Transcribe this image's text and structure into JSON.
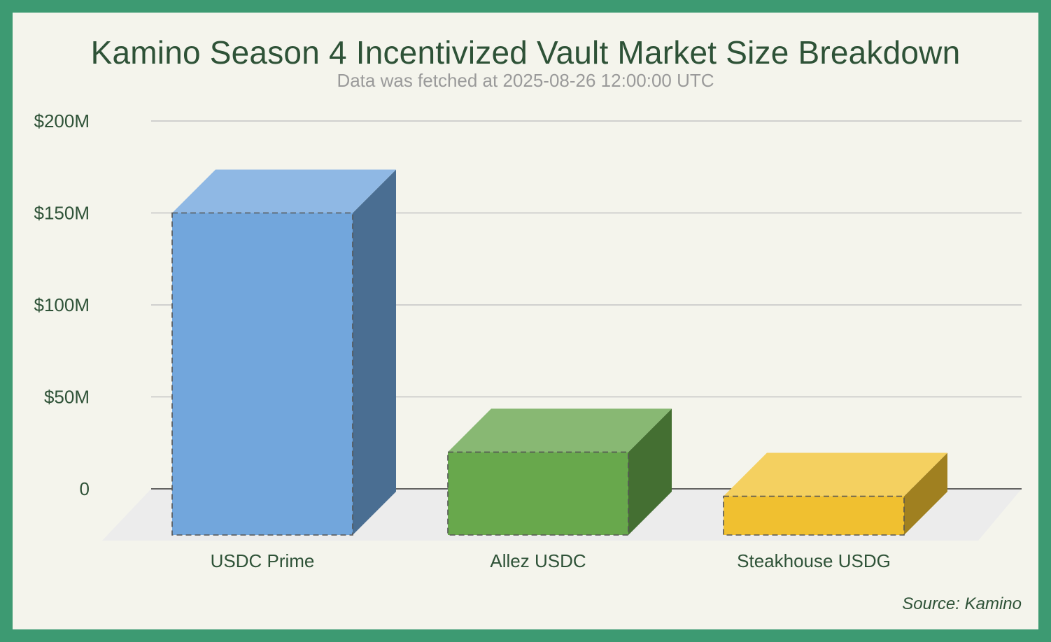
{
  "chart_data": {
    "type": "bar",
    "title": "Kamino Season 4 Incentivized Vault Market Size Breakdown",
    "subtitle": "Data was fetched at 2025-08-26 12:00:00 UTC",
    "source": "Source: Kamino",
    "categories": [
      "USDC Prime",
      "Allez USDC",
      "Steakhouse USDG"
    ],
    "values": [
      150000000,
      20000000,
      -4000000
    ],
    "ylim": [
      0,
      200000000
    ],
    "yticks": [
      0,
      50000000,
      100000000,
      150000000,
      200000000
    ],
    "ytick_labels": [
      "0",
      "$50M",
      "$100M",
      "$150M",
      "$200M"
    ],
    "grid": true,
    "style": "3d-bar",
    "colors": {
      "front": [
        "#72a6dc",
        "#68a84c",
        "#f0c030"
      ],
      "top": [
        "#8fb8e4",
        "#88b873",
        "#f4d060"
      ],
      "side": [
        "#4a6e92",
        "#446f32",
        "#a08020"
      ]
    },
    "floor_color": "#ececec",
    "frame_color": "#3d9a72",
    "background_color": "#f4f4ec"
  }
}
